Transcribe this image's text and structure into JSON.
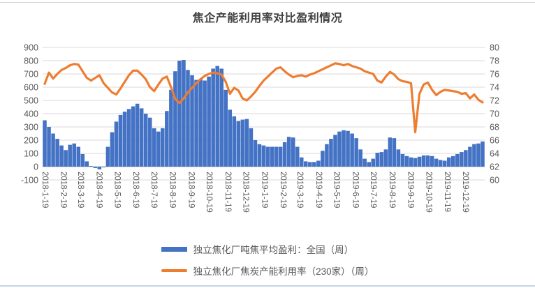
{
  "page": {
    "top_rule_color": "#d9d9d9",
    "bottom_rule_color": "#c3d5ea",
    "background": "#ffffff"
  },
  "chart_data": {
    "type": "combo",
    "title": "焦企产能利用率对比盈利情况",
    "grid": true,
    "legend_position": "bottom",
    "text_color": "#595959",
    "grid_color": "#d9d9d9",
    "axis_line_color": "#bfbfbf",
    "x_labels": [
      "2018-1-19",
      "2018-2-19",
      "2018-3-19",
      "2018-4-19",
      "2018-5-19",
      "2018-6-19",
      "2018-7-19",
      "2018-8-19",
      "2018-9-19",
      "2018-10-19",
      "2018-11-19",
      "2018-12-19",
      "2019-1-19",
      "2019-2-19",
      "2019-3-19",
      "2019-4-19",
      "2019-5-19",
      "2019-6-19",
      "2019-7-19",
      "2019-8-19",
      "2019-9-19",
      "2019-10-19",
      "2019-11-19",
      "2019-12-19"
    ],
    "x_unit": "weekly",
    "left_axis": {
      "min": -100,
      "max": 900,
      "ticks": [
        900,
        800,
        700,
        600,
        500,
        400,
        300,
        200,
        100,
        0,
        -100
      ]
    },
    "right_axis": {
      "min": 60,
      "max": 80,
      "ticks": [
        80,
        78,
        76,
        74,
        72,
        70,
        68,
        66,
        64,
        62,
        60
      ]
    },
    "series": [
      {
        "name": "独立焦化厂吨焦平均盈利：全国（周）",
        "type": "bar",
        "axis": "left",
        "color": "#4472c4",
        "values": [
          350,
          300,
          250,
          210,
          160,
          125,
          165,
          175,
          150,
          95,
          40,
          5,
          -10,
          -20,
          -5,
          150,
          260,
          340,
          390,
          415,
          435,
          455,
          475,
          440,
          400,
          370,
          290,
          265,
          290,
          420,
          580,
          720,
          800,
          805,
          730,
          690,
          655,
          660,
          650,
          680,
          740,
          760,
          740,
          580,
          430,
          380,
          345,
          355,
          360,
          290,
          200,
          170,
          160,
          150,
          150,
          150,
          150,
          185,
          225,
          220,
          150,
          70,
          40,
          35,
          35,
          45,
          120,
          170,
          210,
          240,
          265,
          275,
          270,
          250,
          215,
          130,
          60,
          35,
          60,
          105,
          110,
          130,
          220,
          215,
          130,
          95,
          80,
          70,
          65,
          75,
          85,
          85,
          80,
          60,
          50,
          45,
          70,
          80,
          95,
          110,
          125,
          150,
          170,
          175,
          190
        ]
      },
      {
        "name": "独立焦化厂焦炭产能利用率（230家）（周）",
        "type": "line",
        "axis": "right",
        "color": "#ed7d31",
        "values": [
          74.5,
          76.2,
          75.3,
          76.0,
          76.6,
          76.9,
          77.3,
          77.5,
          77.4,
          76.4,
          75.4,
          75.0,
          75.4,
          75.8,
          74.6,
          73.9,
          73.2,
          72.9,
          73.8,
          74.8,
          75.8,
          76.5,
          76.5,
          75.9,
          75.2,
          74.0,
          73.4,
          74.4,
          75.3,
          75.6,
          74.0,
          72.2,
          71.6,
          72.3,
          73.2,
          73.9,
          74.6,
          75.2,
          75.7,
          76.0,
          76.2,
          76.1,
          75.9,
          74.8,
          73.0,
          73.9,
          73.5,
          72.3,
          72.0,
          72.6,
          73.3,
          74.2,
          75.0,
          75.6,
          76.2,
          76.8,
          77.0,
          76.4,
          75.9,
          75.5,
          75.7,
          75.8,
          75.6,
          75.9,
          76.1,
          76.4,
          76.7,
          77.0,
          77.3,
          77.6,
          77.5,
          77.3,
          77.5,
          77.2,
          77.0,
          76.8,
          76.4,
          76.2,
          76.0,
          75.0,
          74.7,
          75.6,
          76.3,
          75.9,
          75.2,
          74.9,
          74.8,
          74.6,
          67.2,
          73.0,
          74.4,
          74.7,
          73.6,
          72.8,
          73.3,
          73.6,
          73.5,
          73.4,
          73.3,
          73.0,
          73.1,
          72.3,
          72.9,
          72.1,
          71.7
        ]
      }
    ]
  }
}
